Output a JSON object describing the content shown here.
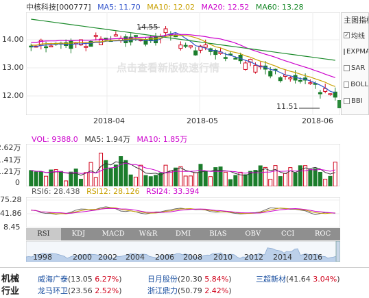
{
  "header": {
    "name": "中核科技[000777]",
    "ma5": "MA5: 11.70",
    "ma10": "MA10: 12.02",
    "ma20": "MA20: 12.52",
    "ma60": "MA60: 13.28"
  },
  "watermark": "点击查看新版极速行情",
  "price_axis": [
    "14.00",
    "13.00",
    "12.00"
  ],
  "annotations": {
    "high": "14.55",
    "low": "11.51"
  },
  "date_axis": [
    "2018-04",
    "2018-05",
    "2018-06"
  ],
  "volume_legend": {
    "vol": "VOL: 9388.0",
    "ma5": "MA5: 1.94万",
    "ma10": "MA10: 1.85万"
  },
  "volume_axis": [
    "2.62万",
    "1.41万",
    "1.21万",
    "0"
  ],
  "rsi_legend": {
    "rsi6": "RSI6: 28.438",
    "rsi12": "RSI12: 28.126",
    "rsi24": "RSI24: 33.394"
  },
  "rsi_axis": [
    "75.28",
    "41.86",
    "8.45"
  ],
  "sidebar": {
    "title": "主图指标",
    "options": [
      {
        "label": "均线",
        "checked": true
      },
      {
        "label": "EXPMA",
        "checked": false
      },
      {
        "label": "SAR",
        "checked": false
      },
      {
        "label": "BOLL",
        "checked": false
      },
      {
        "label": "BBI",
        "checked": false
      }
    ]
  },
  "tabs": [
    "RSI",
    "KDJ",
    "MACD",
    "W&R",
    "DMI",
    "BIAS",
    "OBV",
    "CCI",
    "ROC"
  ],
  "active_tab": "RSI",
  "timeline_years": [
    "1998",
    "2000",
    "2002",
    "2004",
    "2006",
    "2008",
    "2010",
    "2012",
    "2014",
    "2016"
  ],
  "peers": {
    "title": "机械行业",
    "items": [
      {
        "name": "威海广泰",
        "price": "13.05",
        "pct": "6.27%"
      },
      {
        "name": "日月股份",
        "price": "20.30",
        "pct": "5.84%"
      },
      {
        "name": "三超新材",
        "price": "41.64",
        "pct": "3.04%"
      },
      {
        "name": "龙马环卫",
        "price": "23.56",
        "pct": "2.52%"
      },
      {
        "name": "浙江鼎力",
        "price": "50.79",
        "pct": "2.42%"
      }
    ]
  },
  "colors": {
    "up": "#d0021b",
    "down": "#1b7d2b",
    "ma5": "#3355cc",
    "ma10": "#c8a000",
    "ma20": "#cc00cc",
    "ma60": "#1a8a2a"
  }
}
